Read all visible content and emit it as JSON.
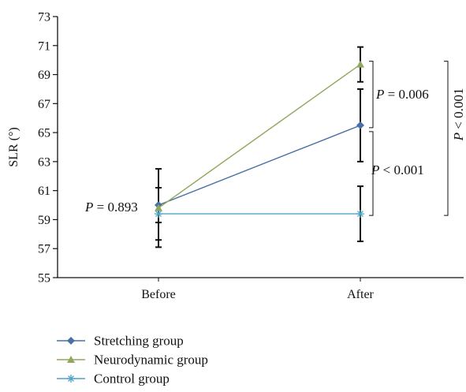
{
  "chart_data": {
    "type": "line",
    "title": "",
    "xlabel": "",
    "ylabel": "SLR (°)",
    "ylim": [
      55,
      73
    ],
    "yticks": [
      55,
      57,
      59,
      61,
      63,
      65,
      67,
      69,
      71,
      73
    ],
    "categories": [
      "Before",
      "After"
    ],
    "series": [
      {
        "name": "Stretching group",
        "color": "#4a6fa5",
        "marker": "diamond",
        "values": [
          60.0,
          65.5
        ],
        "errors": [
          1.2,
          2.5
        ]
      },
      {
        "name": "Neurodynamic group",
        "color": "#8fa85a",
        "marker": "triangle",
        "values": [
          59.8,
          69.7
        ],
        "errors": [
          2.7,
          1.2
        ]
      },
      {
        "name": "Control group",
        "color": "#4fa3c7",
        "marker": "star",
        "values": [
          59.4,
          59.4
        ],
        "errors": [
          1.8,
          1.9
        ]
      }
    ],
    "annotations": [
      {
        "text": "P = 0.893",
        "p_letter": "P",
        "rest": " = 0.893"
      },
      {
        "text": "P = 0.006",
        "p_letter": "P",
        "rest": " = 0.006"
      },
      {
        "text": "P < 0.001",
        "p_letter": "P",
        "rest": " < 0.001"
      },
      {
        "text": "P < 0.001",
        "p_letter": "P",
        "rest": " < 0.001"
      }
    ],
    "legend_position": "bottom-left",
    "grid": false
  }
}
